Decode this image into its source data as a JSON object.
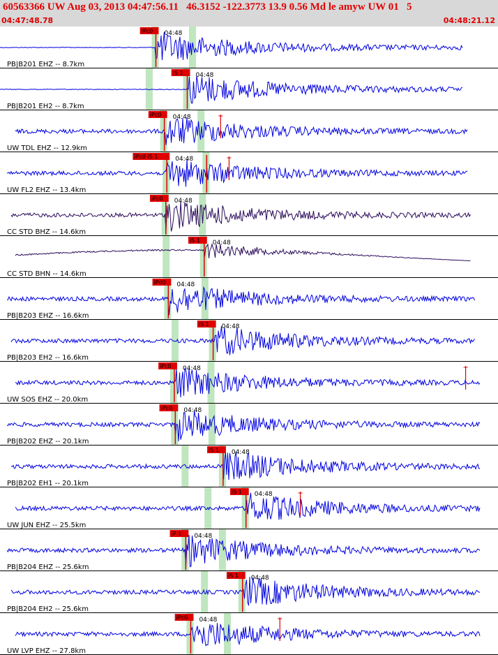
{
  "header": {
    "title": "60563366 UW Aug 03, 2013 04:47:56.11   46.3152 -122.3773 13.9 0.56 Md le amyw UW 01   5",
    "start_time": "04:47:48.78",
    "end_time": "04:48:21.12"
  },
  "colors": {
    "trace": "#0000e0",
    "trace_dark": "#2a0a5a",
    "pick": "#e00000",
    "window": "#bfe6bf",
    "header_bg": "#d8d8d8"
  },
  "panels": [
    {
      "label": "PB|B201 EHZ -- 8.7km",
      "time_tick": "04:48",
      "pick_label": "iPc0",
      "phase": "P",
      "pick": 0.313,
      "color": "blue",
      "end": 0.93
    },
    {
      "label": "PB|B201 EH2 -- 8.7km",
      "time_tick": "04:48",
      "pick_label": "iS 1",
      "phase": "S",
      "pick": 0.376,
      "color": "blue",
      "end": 0.93
    },
    {
      "label": "UW TDL EHZ -- 12.9km",
      "time_tick": "04:48",
      "pick_label": "iPc0",
      "phase": "P",
      "pick": 0.33,
      "color": "blue",
      "end": 0.94,
      "spike": 0.443
    },
    {
      "label": "UW FL2 EHZ -- 13.4km",
      "time_tick": "04:48",
      "pick_label": "iPc0 iS 1",
      "phase": "PS",
      "pick": 0.335,
      "pick2": 0.415,
      "color": "blue",
      "end": 0.94,
      "spike": 0.46
    },
    {
      "label": "CC STD BHZ -- 14.6km",
      "time_tick": "04:48",
      "pick_label": "iPc0",
      "phase": "P",
      "pick": 0.333,
      "color": "dark",
      "end": 0.945
    },
    {
      "label": "CC STD BHN -- 14.6km",
      "time_tick": "04:48",
      "pick_label": "iS 1",
      "phase": "S",
      "pick": 0.41,
      "color": "dark",
      "end": 0.945
    },
    {
      "label": "PB|B203 EHZ -- 16.6km",
      "time_tick": "04:48",
      "pick_label": "iPd0",
      "phase": "P",
      "pick": 0.338,
      "color": "blue",
      "end": 0.955
    },
    {
      "label": "PB|B203 EH2 -- 16.6km",
      "time_tick": "04:48",
      "pick_label": "iS 1",
      "phase": "S",
      "pick": 0.428,
      "color": "blue",
      "end": 0.955
    },
    {
      "label": "UW SOS EHZ -- 20.0km",
      "time_tick": "04:48",
      "pick_label": "iPc0",
      "phase": "P",
      "pick": 0.35,
      "color": "blue",
      "end": 0.965,
      "spike": 0.935
    },
    {
      "label": "PB|B202 EHZ -- 20.1km",
      "time_tick": "04:48",
      "pick_label": "iPc0",
      "phase": "P",
      "pick": 0.352,
      "color": "blue",
      "end": 0.965
    },
    {
      "label": "PB|B202 EH1 -- 20.1km",
      "time_tick": "04:48",
      "pick_label": "iS 1",
      "phase": "S",
      "pick": 0.448,
      "color": "blue",
      "end": 0.965
    },
    {
      "label": "UW JUN EHZ -- 25.5km",
      "time_tick": "04:48",
      "pick_label": "iS 1",
      "phase": "S",
      "pick": 0.494,
      "color": "blue",
      "end": 0.965,
      "spike": 0.603
    },
    {
      "label": "PB|B204 EHZ -- 25.6km",
      "time_tick": "04:48",
      "pick_label": "iP 1",
      "phase": "P",
      "pick": 0.373,
      "color": "blue",
      "end": 0.965
    },
    {
      "label": "PB|B204 EH2 -- 25.6km",
      "time_tick": "04:48",
      "pick_label": "iS 1",
      "phase": "S",
      "pick": 0.487,
      "color": "blue",
      "end": 0.965
    },
    {
      "label": "UW LVP EHZ -- 27.8km",
      "time_tick": "04:48",
      "pick_label": "iPc0",
      "phase": "P",
      "pick": 0.383,
      "color": "blue",
      "end": 0.965,
      "spike": 0.562
    }
  ]
}
